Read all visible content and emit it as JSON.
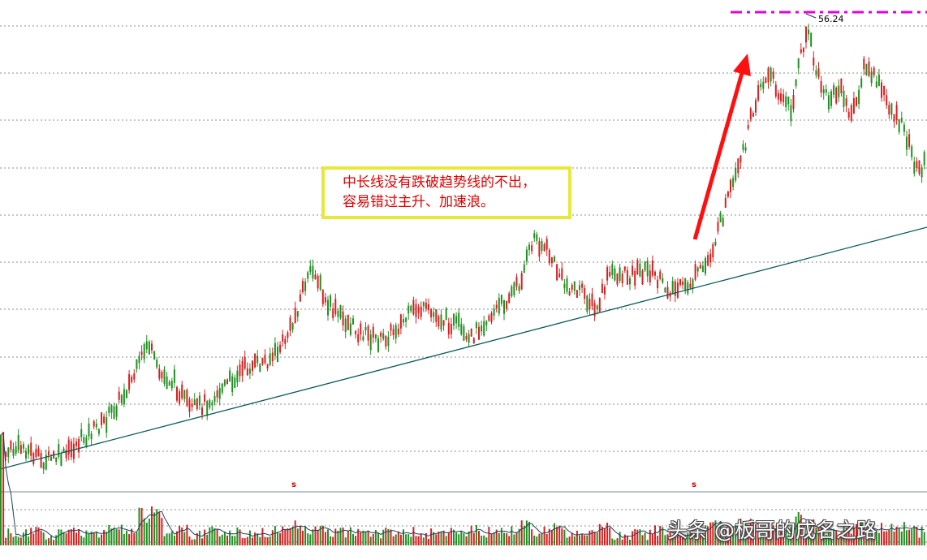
{
  "chart_data": {
    "type": "candlestick",
    "title": "",
    "peak_value": 56.24,
    "price_range": [
      10,
      56.24
    ],
    "grid": "horizontal-dotted",
    "annotation_lines": [
      "中长线没有跌破趋势线的不出，",
      "容易错过主升、加速浪。"
    ],
    "markers": [
      "s",
      "s"
    ],
    "watermark": "头条 @板哥的成名之路",
    "colors": {
      "up": "#d62020",
      "down": "#209020",
      "trend": "#0a5a5a",
      "arrow": "#ff1010",
      "peak_line": "#e000e0",
      "grid": "#6a6a6a",
      "box": "#e8e83a"
    },
    "price_path_norm": [
      [
        0,
        0.93
      ],
      [
        30,
        0.915
      ],
      [
        50,
        0.945
      ],
      [
        80,
        0.935
      ],
      [
        100,
        0.9
      ],
      [
        130,
        0.86
      ],
      [
        150,
        0.81
      ],
      [
        170,
        0.75
      ],
      [
        182,
        0.69
      ],
      [
        195,
        0.76
      ],
      [
        215,
        0.78
      ],
      [
        235,
        0.84
      ],
      [
        255,
        0.82
      ],
      [
        275,
        0.79
      ],
      [
        300,
        0.75
      ],
      [
        320,
        0.74
      ],
      [
        340,
        0.72
      ],
      [
        360,
        0.66
      ],
      [
        375,
        0.57
      ],
      [
        388,
        0.54
      ],
      [
        400,
        0.61
      ],
      [
        420,
        0.64
      ],
      [
        440,
        0.67
      ],
      [
        470,
        0.69
      ],
      [
        490,
        0.66
      ],
      [
        515,
        0.62
      ],
      [
        540,
        0.64
      ],
      [
        565,
        0.66
      ],
      [
        575,
        0.7
      ],
      [
        590,
        0.66
      ],
      [
        615,
        0.62
      ],
      [
        640,
        0.57
      ],
      [
        658,
        0.47
      ],
      [
        675,
        0.5
      ],
      [
        695,
        0.57
      ],
      [
        720,
        0.59
      ],
      [
        735,
        0.63
      ],
      [
        750,
        0.55
      ],
      [
        775,
        0.55
      ],
      [
        800,
        0.54
      ],
      [
        820,
        0.58
      ],
      [
        845,
        0.58
      ],
      [
        870,
        0.53
      ],
      [
        885,
        0.46
      ],
      [
        895,
        0.4
      ],
      [
        910,
        0.33
      ],
      [
        920,
        0.26
      ],
      [
        935,
        0.15
      ],
      [
        950,
        0.13
      ],
      [
        965,
        0.18
      ],
      [
        975,
        0.2
      ],
      [
        985,
        0.1
      ],
      [
        995,
        0.03
      ],
      [
        1005,
        0.12
      ],
      [
        1020,
        0.18
      ],
      [
        1035,
        0.16
      ],
      [
        1050,
        0.22
      ],
      [
        1065,
        0.11
      ],
      [
        1080,
        0.14
      ],
      [
        1095,
        0.19
      ],
      [
        1115,
        0.25
      ],
      [
        1130,
        0.33
      ],
      [
        1142,
        0.31
      ]
    ]
  }
}
